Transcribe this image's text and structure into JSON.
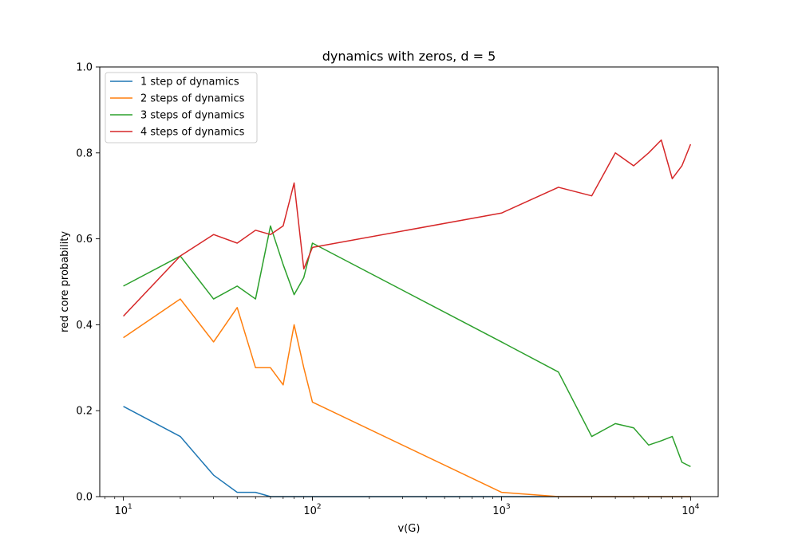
{
  "chart_data": {
    "type": "line",
    "title": "dynamics with zeros, d = 5",
    "xlabel": "v(G)",
    "ylabel": "red core probability",
    "xscale": "log",
    "xlim": [
      7.5,
      14000
    ],
    "ylim": [
      0,
      1.0
    ],
    "xticks_major": [
      {
        "value": 10,
        "base": "10",
        "exp": "1"
      },
      {
        "value": 100,
        "base": "10",
        "exp": "2"
      },
      {
        "value": 1000,
        "base": "10",
        "exp": "3"
      },
      {
        "value": 10000,
        "base": "10",
        "exp": "4"
      }
    ],
    "yticks": [
      "0.0",
      "0.2",
      "0.4",
      "0.6",
      "0.8",
      "1.0"
    ],
    "grid": false,
    "legend_position": "upper-left",
    "x": [
      10,
      20,
      30,
      40,
      50,
      60,
      70,
      80,
      90,
      100,
      1000,
      2000,
      3000,
      4000,
      5000,
      6000,
      7000,
      8000,
      9000,
      10000
    ],
    "series": [
      {
        "name": "1 step of dynamics",
        "color": "#1f77b4",
        "values": [
          0.21,
          0.14,
          0.05,
          0.01,
          0.01,
          0.0,
          0.0,
          0.0,
          0.0,
          0.0,
          0.0,
          0.0,
          0.0,
          0.0,
          0.0,
          0.0,
          0.0,
          0.0,
          0.0,
          0.0
        ]
      },
      {
        "name": "2 steps of dynamics",
        "color": "#ff7f0e",
        "values": [
          0.37,
          0.46,
          0.36,
          0.44,
          0.3,
          0.3,
          0.26,
          0.4,
          0.3,
          0.22,
          0.01,
          0.0,
          0.0,
          0.0,
          0.0,
          0.0,
          0.0,
          0.0,
          0.0,
          0.0
        ]
      },
      {
        "name": "3 steps of dynamics",
        "color": "#2ca02c",
        "values": [
          0.49,
          0.56,
          0.46,
          0.49,
          0.46,
          0.63,
          0.54,
          0.47,
          0.51,
          0.59,
          0.36,
          0.29,
          0.14,
          0.17,
          0.16,
          0.12,
          0.13,
          0.14,
          0.08,
          0.07
        ]
      },
      {
        "name": "4 steps of dynamics",
        "color": "#d62728",
        "values": [
          0.42,
          0.56,
          0.61,
          0.59,
          0.62,
          0.61,
          0.63,
          0.73,
          0.53,
          0.58,
          0.66,
          0.72,
          0.7,
          0.8,
          0.77,
          0.8,
          0.83,
          0.74,
          0.77,
          0.82
        ]
      }
    ]
  }
}
